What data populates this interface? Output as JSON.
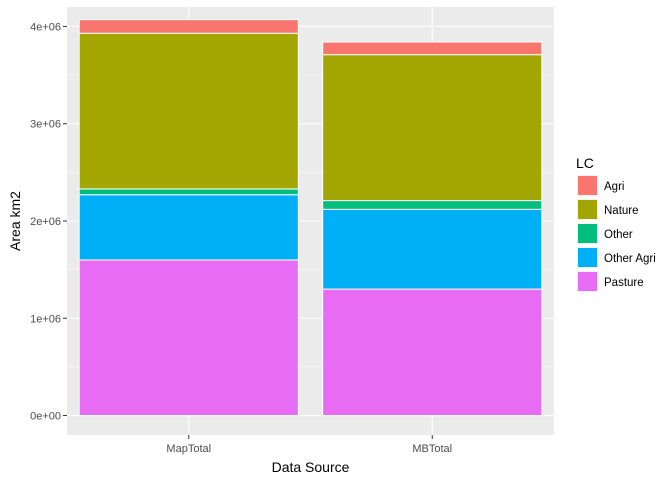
{
  "chart_data": {
    "type": "bar",
    "stacked": true,
    "xlabel": "Data Source",
    "ylabel": "Area km2",
    "categories": [
      "MapTotal",
      "MBTotal"
    ],
    "ylim": [
      -200000,
      4200000
    ],
    "yticks": [
      {
        "value": 0,
        "label": "0e+00"
      },
      {
        "value": 1000000,
        "label": "1e+06"
      },
      {
        "value": 2000000,
        "label": "2e+06"
      },
      {
        "value": 3000000,
        "label": "3e+06"
      },
      {
        "value": 4000000,
        "label": "4e+06"
      }
    ],
    "grid": true,
    "legend": {
      "title": "LC",
      "position": "right"
    },
    "series": [
      {
        "name": "Pasture",
        "color": "#E76BF3",
        "values": [
          1600000,
          1300000
        ]
      },
      {
        "name": "Other Agri",
        "color": "#00B0F6",
        "values": [
          670000,
          820000
        ]
      },
      {
        "name": "Other",
        "color": "#00BF7D",
        "values": [
          60000,
          90000
        ]
      },
      {
        "name": "Nature",
        "color": "#A3A500",
        "values": [
          1600000,
          1500000
        ]
      },
      {
        "name": "Agri",
        "color": "#F8766D",
        "values": [
          140000,
          130000
        ]
      }
    ],
    "legend_order": [
      "Agri",
      "Nature",
      "Other",
      "Other Agri",
      "Pasture"
    ],
    "panel_background": "#EBEBEB",
    "gridline_color": "#FFFFFF"
  }
}
